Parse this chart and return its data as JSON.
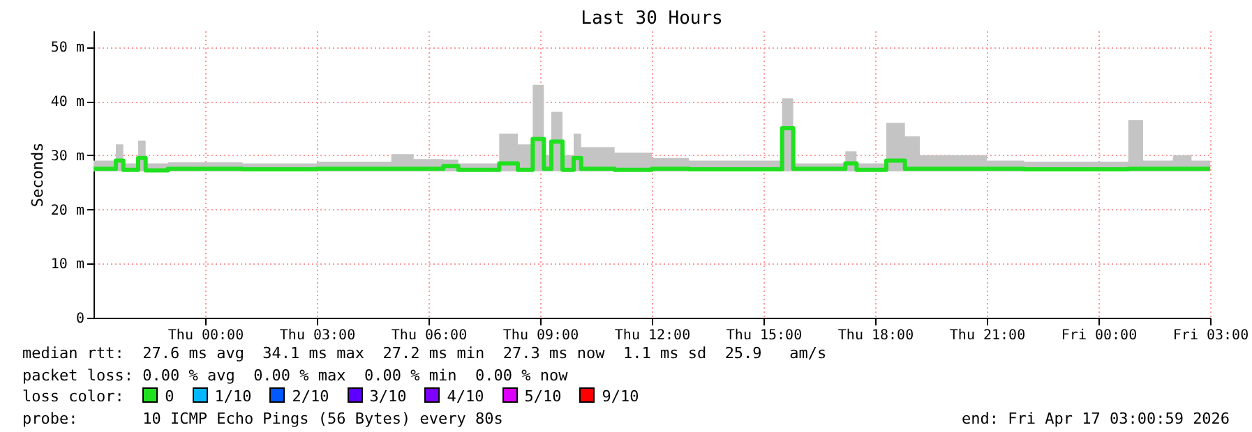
{
  "chart_data": {
    "type": "step",
    "title": "Last 30 Hours",
    "ylabel": "Seconds",
    "xlim": [
      "2026-04-15T21:00",
      "2026-04-17T03:00"
    ],
    "ylim": [
      0,
      53
    ],
    "xticks": [
      {
        "value": "2026-04-16T00:00",
        "label": "Thu 00:00"
      },
      {
        "value": "2026-04-16T03:00",
        "label": "Thu 03:00"
      },
      {
        "value": "2026-04-16T06:00",
        "label": "Thu 06:00"
      },
      {
        "value": "2026-04-16T09:00",
        "label": "Thu 09:00"
      },
      {
        "value": "2026-04-16T12:00",
        "label": "Thu 12:00"
      },
      {
        "value": "2026-04-16T15:00",
        "label": "Thu 15:00"
      },
      {
        "value": "2026-04-16T18:00",
        "label": "Thu 18:00"
      },
      {
        "value": "2026-04-16T21:00",
        "label": "Thu 21:00"
      },
      {
        "value": "2026-04-17T00:00",
        "label": "Fri 00:00"
      },
      {
        "value": "2026-04-17T03:00",
        "label": "Fri 03:00"
      }
    ],
    "yticks": [
      0,
      {
        "value": 10,
        "label": "10 m"
      },
      {
        "value": 20,
        "label": "20 m"
      },
      {
        "value": 30,
        "label": "30 m"
      },
      {
        "value": 40,
        "label": "40 m"
      },
      {
        "value": 50,
        "label": "50 m"
      }
    ],
    "grid": true,
    "legend": "bottom",
    "legend_title": "loss color:",
    "x": [
      "2026-04-15T21:00",
      "2026-04-15T21:36",
      "2026-04-15T21:48",
      "2026-04-15T22:12",
      "2026-04-15T22:24",
      "2026-04-15T23:00",
      "2026-04-16T01:00",
      "2026-04-16T03:00",
      "2026-04-16T05:00",
      "2026-04-16T05:36",
      "2026-04-16T06:24",
      "2026-04-16T06:48",
      "2026-04-16T07:54",
      "2026-04-16T08:24",
      "2026-04-16T08:48",
      "2026-04-16T09:06",
      "2026-04-16T09:18",
      "2026-04-16T09:36",
      "2026-04-16T09:54",
      "2026-04-16T10:06",
      "2026-04-16T11:00",
      "2026-04-16T12:00",
      "2026-04-16T13:00",
      "2026-04-16T15:30",
      "2026-04-16T15:48",
      "2026-04-16T17:12",
      "2026-04-16T17:30",
      "2026-04-16T18:18",
      "2026-04-16T18:48",
      "2026-04-16T19:12",
      "2026-04-16T21:00",
      "2026-04-16T22:00",
      "2026-04-17T00:48",
      "2026-04-17T01:12",
      "2026-04-17T02:00",
      "2026-04-17T02:30",
      "2026-04-17T03:00"
    ],
    "series": [
      {
        "name": "0",
        "color": "#20e020",
        "values": [
          27.5,
          29,
          27.3,
          29.5,
          27.2,
          27.5,
          27.4,
          27.5,
          27.5,
          27.5,
          28,
          27.3,
          28.5,
          27.3,
          33,
          27.5,
          32.5,
          27.3,
          29.5,
          27.5,
          27.3,
          27.5,
          27.4,
          35,
          27.5,
          28.5,
          27.3,
          29,
          27.5,
          27.5,
          27.5,
          27.4,
          27.5,
          27.5,
          27.5,
          27.5,
          27.5
        ],
        "lower": [
          27,
          27,
          27,
          27,
          27,
          27,
          27,
          27,
          27,
          27,
          27,
          27,
          27,
          27,
          27,
          27,
          27,
          27,
          27,
          27,
          27,
          27,
          27,
          27,
          27,
          27,
          27,
          27,
          27,
          27,
          27,
          27,
          27,
          27,
          27,
          27,
          27
        ],
        "upper": [
          29,
          32,
          28.5,
          32.7,
          28.5,
          28.7,
          28.5,
          28.8,
          30.2,
          29.3,
          29.2,
          28.5,
          34,
          32,
          43,
          30,
          38,
          30,
          34,
          31.5,
          30.5,
          29.5,
          29,
          40.5,
          28.5,
          30.7,
          28.5,
          36,
          33.5,
          30,
          29,
          28.8,
          36.5,
          29,
          30,
          29,
          29
        ]
      },
      {
        "name": "1/10",
        "color": "#00b8ff",
        "values": [
          null,
          null,
          null,
          null,
          null,
          null,
          null,
          null,
          null,
          null,
          null,
          null,
          null,
          null,
          null,
          null,
          null,
          null,
          null,
          null,
          null,
          null,
          null,
          null,
          null,
          null,
          null,
          null,
          null,
          null,
          null,
          null,
          null,
          null,
          null,
          null,
          null
        ]
      },
      {
        "name": "2/10",
        "color": "#0059ff",
        "values": [
          null,
          null,
          null,
          null,
          null,
          null,
          null,
          null,
          null,
          null,
          null,
          null,
          null,
          null,
          null,
          null,
          null,
          null,
          null,
          null,
          null,
          null,
          null,
          null,
          null,
          null,
          null,
          null,
          null,
          null,
          null,
          null,
          null,
          null,
          null,
          null,
          null
        ]
      },
      {
        "name": "3/10",
        "color": "#5e00ff",
        "values": [
          null,
          null,
          null,
          null,
          null,
          null,
          null,
          null,
          null,
          null,
          null,
          null,
          null,
          null,
          null,
          null,
          null,
          null,
          null,
          null,
          null,
          null,
          null,
          null,
          null,
          null,
          null,
          null,
          null,
          null,
          null,
          null,
          null,
          null,
          null,
          null,
          null
        ]
      },
      {
        "name": "4/10",
        "color": "#7e00ff",
        "values": [
          null,
          null,
          null,
          null,
          null,
          null,
          null,
          null,
          null,
          null,
          null,
          null,
          null,
          null,
          null,
          null,
          null,
          null,
          null,
          null,
          null,
          null,
          null,
          null,
          null,
          null,
          null,
          null,
          null,
          null,
          null,
          null,
          null,
          null,
          null,
          null,
          null
        ]
      },
      {
        "name": "5/10",
        "color": "#dd00ff",
        "values": [
          null,
          null,
          null,
          null,
          null,
          null,
          null,
          null,
          null,
          null,
          null,
          null,
          null,
          null,
          null,
          null,
          null,
          null,
          null,
          null,
          null,
          null,
          null,
          null,
          null,
          null,
          null,
          null,
          null,
          null,
          null,
          null,
          null,
          null,
          null,
          null,
          null
        ]
      },
      {
        "name": "9/10",
        "color": "#ff0000",
        "values": [
          null,
          null,
          null,
          null,
          null,
          null,
          null,
          null,
          null,
          null,
          null,
          null,
          null,
          null,
          null,
          null,
          null,
          null,
          null,
          null,
          null,
          null,
          null,
          null,
          null,
          null,
          null,
          null,
          null,
          null,
          null,
          null,
          null,
          null,
          null,
          null,
          null
        ]
      }
    ],
    "annotations": [
      "median rtt:  27.6 ms avg  34.1 ms max  27.2 ms min  27.3 ms now  1.1 ms sd  25.9   am/s",
      "packet loss: 0.00 % avg  0.00 % max  0.00 % min  0.00 % now",
      "probe:       10 ICMP Echo Pings (56 Bytes) every 80s",
      "end: Fri Apr 17 03:00:59 2026"
    ]
  }
}
